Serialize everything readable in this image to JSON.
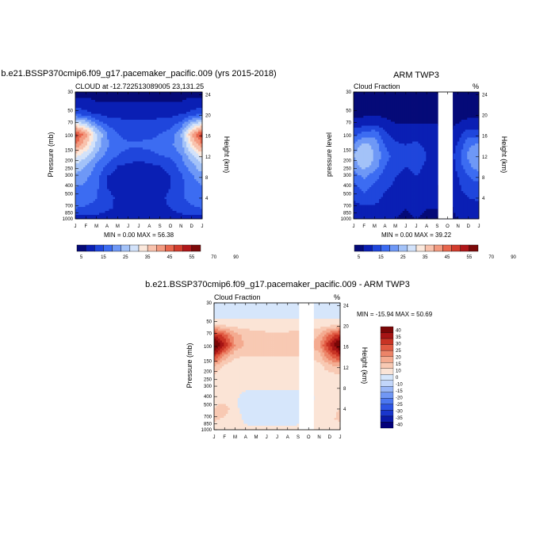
{
  "palettes": {
    "cloud": [
      "#050a78",
      "#0a1fb4",
      "#1f46dc",
      "#3c6cf2",
      "#6e98f6",
      "#a3c2f8",
      "#d2e2fa",
      "#fbe8dc",
      "#f8c2ad",
      "#f39a80",
      "#e8664d",
      "#d23c2d",
      "#b0171a",
      "#7d0a0a"
    ],
    "diff": [
      "#03007a",
      "#0b1aa8",
      "#1a36cc",
      "#2e55e4",
      "#4c77f0",
      "#7197f4",
      "#9ab7f7",
      "#c2d6fa",
      "#d6e6fb",
      "#fbe4d6",
      "#f8c9b3",
      "#f4ab90",
      "#ec8468",
      "#e05a42",
      "#c83324",
      "#a61414",
      "#7a0606"
    ]
  },
  "chart_data": [
    {
      "type": "heatmap",
      "title": "b.e21.BSSP370cmip6.f09_g17.pacemaker_pacific.009 (yrs 2015-2018)",
      "subtitle_left": "CLOUD at -12.722513089005 23,131.25",
      "subtitle_right": "",
      "ylabel": "Pressure (mb)",
      "ylabel_right": "Height (km)",
      "months": [
        "J",
        "F",
        "M",
        "A",
        "M",
        "J",
        "J",
        "A",
        "S",
        "O",
        "N",
        "D",
        "J"
      ],
      "pressure_ticks": [
        "30",
        "50",
        "70",
        "100",
        "150",
        "200",
        "250",
        "300",
        "400",
        "500",
        "700",
        "850",
        "1000"
      ],
      "height_ticks": [
        "24",
        "20",
        "16",
        "12",
        "8",
        "4"
      ],
      "stats": "MIN =   0.00 MAX =  56.38",
      "min": 0.0,
      "max": 56.38,
      "colorbar_labels": [
        "5",
        "15",
        "25",
        "35",
        "45",
        "55",
        "70",
        "90"
      ],
      "levels": [
        1,
        5,
        10,
        15,
        20,
        25,
        30,
        35,
        40,
        45,
        50,
        55,
        70,
        90
      ],
      "palette": "cloud",
      "ylim": [
        1000,
        30
      ],
      "z": [
        [
          0,
          0,
          0,
          0,
          0,
          0,
          0,
          0,
          0,
          0,
          0,
          0,
          0
        ],
        [
          2,
          2,
          1,
          1,
          1,
          1,
          1,
          1,
          1,
          1,
          1,
          2,
          2
        ],
        [
          8,
          6,
          4,
          3,
          3,
          3,
          3,
          3,
          3,
          3,
          4,
          6,
          8
        ],
        [
          30,
          25,
          14,
          9,
          7,
          6,
          6,
          6,
          7,
          8,
          12,
          22,
          30
        ],
        [
          53,
          42,
          26,
          15,
          10,
          8,
          8,
          8,
          10,
          12,
          20,
          40,
          53
        ],
        [
          45,
          36,
          24,
          16,
          12,
          11,
          11,
          12,
          13,
          14,
          18,
          33,
          45
        ],
        [
          32,
          26,
          19,
          13,
          10,
          8,
          7,
          8,
          10,
          11,
          15,
          24,
          32
        ],
        [
          24,
          20,
          14,
          9,
          5,
          4,
          3,
          4,
          5,
          7,
          12,
          18,
          24
        ],
        [
          18,
          16,
          12,
          5,
          3,
          2,
          2,
          2,
          3,
          5,
          9,
          14,
          18
        ],
        [
          15,
          14,
          11,
          5,
          2,
          2,
          2,
          2,
          3,
          5,
          9,
          12,
          15
        ],
        [
          14,
          13,
          10,
          7,
          4,
          3,
          3,
          3,
          4,
          6,
          9,
          12,
          14
        ],
        [
          10,
          9,
          8,
          6,
          4,
          3,
          3,
          3,
          4,
          5,
          7,
          9,
          10
        ],
        [
          3,
          3,
          3,
          2,
          2,
          1,
          1,
          1,
          2,
          2,
          3,
          3,
          3
        ]
      ],
      "gap": null
    },
    {
      "type": "heatmap",
      "title": "ARM TWP3",
      "subtitle_left": "Cloud Fraction",
      "subtitle_right": "%",
      "ylabel": "pressure level",
      "ylabel_right": "Height (km)",
      "months": [
        "J",
        "F",
        "M",
        "A",
        "M",
        "J",
        "J",
        "A",
        "S",
        "O",
        "N",
        "D",
        "J"
      ],
      "pressure_ticks": [
        "30",
        "50",
        "70",
        "100",
        "150",
        "200",
        "250",
        "300",
        "400",
        "500",
        "700",
        "850",
        "1000"
      ],
      "height_ticks": [
        "24",
        "20",
        "16",
        "12",
        "8",
        "4"
      ],
      "stats": "MIN =   0.00 MAX =  39.22",
      "min": 0.0,
      "max": 39.22,
      "colorbar_labels": [
        "5",
        "15",
        "25",
        "35",
        "45",
        "55",
        "70",
        "90"
      ],
      "levels": [
        1,
        5,
        10,
        15,
        20,
        25,
        30,
        35,
        40,
        45,
        50,
        55,
        70,
        90
      ],
      "palette": "cloud",
      "ylim": [
        1000,
        30
      ],
      "z": [
        [
          0,
          0,
          0,
          0,
          0,
          0,
          0,
          0,
          0,
          0,
          0,
          0,
          0
        ],
        [
          0,
          0,
          0,
          0,
          0,
          0,
          0,
          0,
          0,
          0,
          0,
          0,
          0
        ],
        [
          0,
          0,
          0,
          0,
          0,
          0,
          0,
          0,
          0,
          0,
          0,
          0,
          0
        ],
        [
          2,
          3,
          4,
          2,
          1,
          1,
          1,
          1,
          1,
          0,
          1,
          2,
          2
        ],
        [
          8,
          12,
          14,
          6,
          3,
          2,
          3,
          2,
          2,
          0,
          3,
          8,
          8
        ],
        [
          16,
          22,
          18,
          10,
          6,
          5,
          6,
          4,
          3,
          0,
          6,
          14,
          16
        ],
        [
          20,
          25,
          20,
          12,
          8,
          6,
          8,
          5,
          3,
          0,
          8,
          16,
          20
        ],
        [
          18,
          22,
          18,
          10,
          8,
          5,
          7,
          4,
          2,
          0,
          7,
          14,
          18
        ],
        [
          12,
          16,
          12,
          8,
          5,
          3,
          5,
          3,
          2,
          0,
          5,
          10,
          12
        ],
        [
          8,
          12,
          9,
          6,
          4,
          2,
          4,
          2,
          1,
          0,
          4,
          8,
          8
        ],
        [
          6,
          8,
          7,
          4,
          3,
          2,
          3,
          2,
          1,
          0,
          3,
          5,
          6
        ],
        [
          3,
          4,
          4,
          3,
          2,
          1,
          2,
          1,
          1,
          0,
          2,
          3,
          3
        ],
        [
          1,
          1,
          1,
          1,
          1,
          0,
          1,
          0,
          0,
          0,
          1,
          1,
          1
        ]
      ],
      "gap": [
        8.1,
        9.5
      ]
    },
    {
      "type": "heatmap",
      "title": "b.e21.BSSP370cmip6.f09_g17.pacemaker_pacific.009 - ARM TWP3",
      "subtitle_left": "Cloud Fraction",
      "subtitle_right": "%",
      "ylabel": "Pressure (mb)",
      "ylabel_right": "Height (km)",
      "months": [
        "J",
        "F",
        "M",
        "A",
        "M",
        "J",
        "J",
        "A",
        "S",
        "O",
        "N",
        "D",
        "J"
      ],
      "pressure_ticks": [
        "30",
        "50",
        "70",
        "100",
        "150",
        "200",
        "250",
        "300",
        "400",
        "500",
        "700",
        "850",
        "1000"
      ],
      "height_ticks": [
        "24",
        "20",
        "16",
        "12",
        "8",
        "4"
      ],
      "stats": "MIN = -15.94 MAX =  50.69",
      "min": -15.94,
      "max": 50.69,
      "colorbar_labels": [
        "40",
        "35",
        "30",
        "25",
        "20",
        "15",
        "10",
        "0",
        "-10",
        "-15",
        "-20",
        "-25",
        "-30",
        "-35",
        "-40"
      ],
      "levels": [
        -40,
        -35,
        -30,
        -25,
        -20,
        -15,
        -10,
        -5,
        0,
        5,
        10,
        15,
        20,
        25,
        30,
        35,
        40
      ],
      "palette": "diff",
      "ylim": [
        1000,
        30
      ],
      "z": [
        [
          -3,
          -3,
          -3,
          -3,
          -3,
          -3,
          -3,
          -3,
          -3,
          -3,
          -3,
          -3,
          -3
        ],
        [
          -2,
          -2,
          -2,
          -2,
          -2,
          -2,
          -2,
          -2,
          -2,
          -2,
          -2,
          -2,
          -2
        ],
        [
          3,
          2,
          2,
          2,
          2,
          2,
          2,
          2,
          2,
          2,
          2,
          2,
          3
        ],
        [
          28,
          22,
          12,
          8,
          7,
          6,
          6,
          6,
          7,
          7,
          10,
          20,
          28
        ],
        [
          45,
          30,
          15,
          9,
          8,
          7,
          7,
          7,
          8,
          9,
          14,
          30,
          45
        ],
        [
          28,
          14,
          6,
          5,
          5,
          5,
          5,
          5,
          5,
          5,
          8,
          20,
          28
        ],
        [
          10,
          3,
          2,
          2,
          2,
          2,
          2,
          2,
          2,
          2,
          3,
          8,
          10
        ],
        [
          3,
          2,
          1,
          1,
          1,
          1,
          1,
          1,
          1,
          1,
          2,
          3,
          3
        ],
        [
          2,
          2,
          1,
          1,
          1,
          1,
          1,
          1,
          1,
          1,
          1,
          2,
          2
        ],
        [
          3,
          2,
          1,
          -2,
          -2,
          -3,
          -3,
          -2,
          -2,
          -2,
          2,
          3,
          3
        ],
        [
          5,
          8,
          1,
          -2,
          -3,
          -3,
          -3,
          -3,
          -2,
          -2,
          3,
          4,
          5
        ],
        [
          6,
          4,
          2,
          -1,
          -2,
          -2,
          -2,
          -2,
          -1,
          -1,
          3,
          4,
          6
        ],
        [
          2,
          2,
          2,
          1,
          1,
          1,
          1,
          1,
          1,
          1,
          2,
          2,
          2
        ]
      ],
      "gap": [
        8.1,
        9.5
      ]
    }
  ]
}
